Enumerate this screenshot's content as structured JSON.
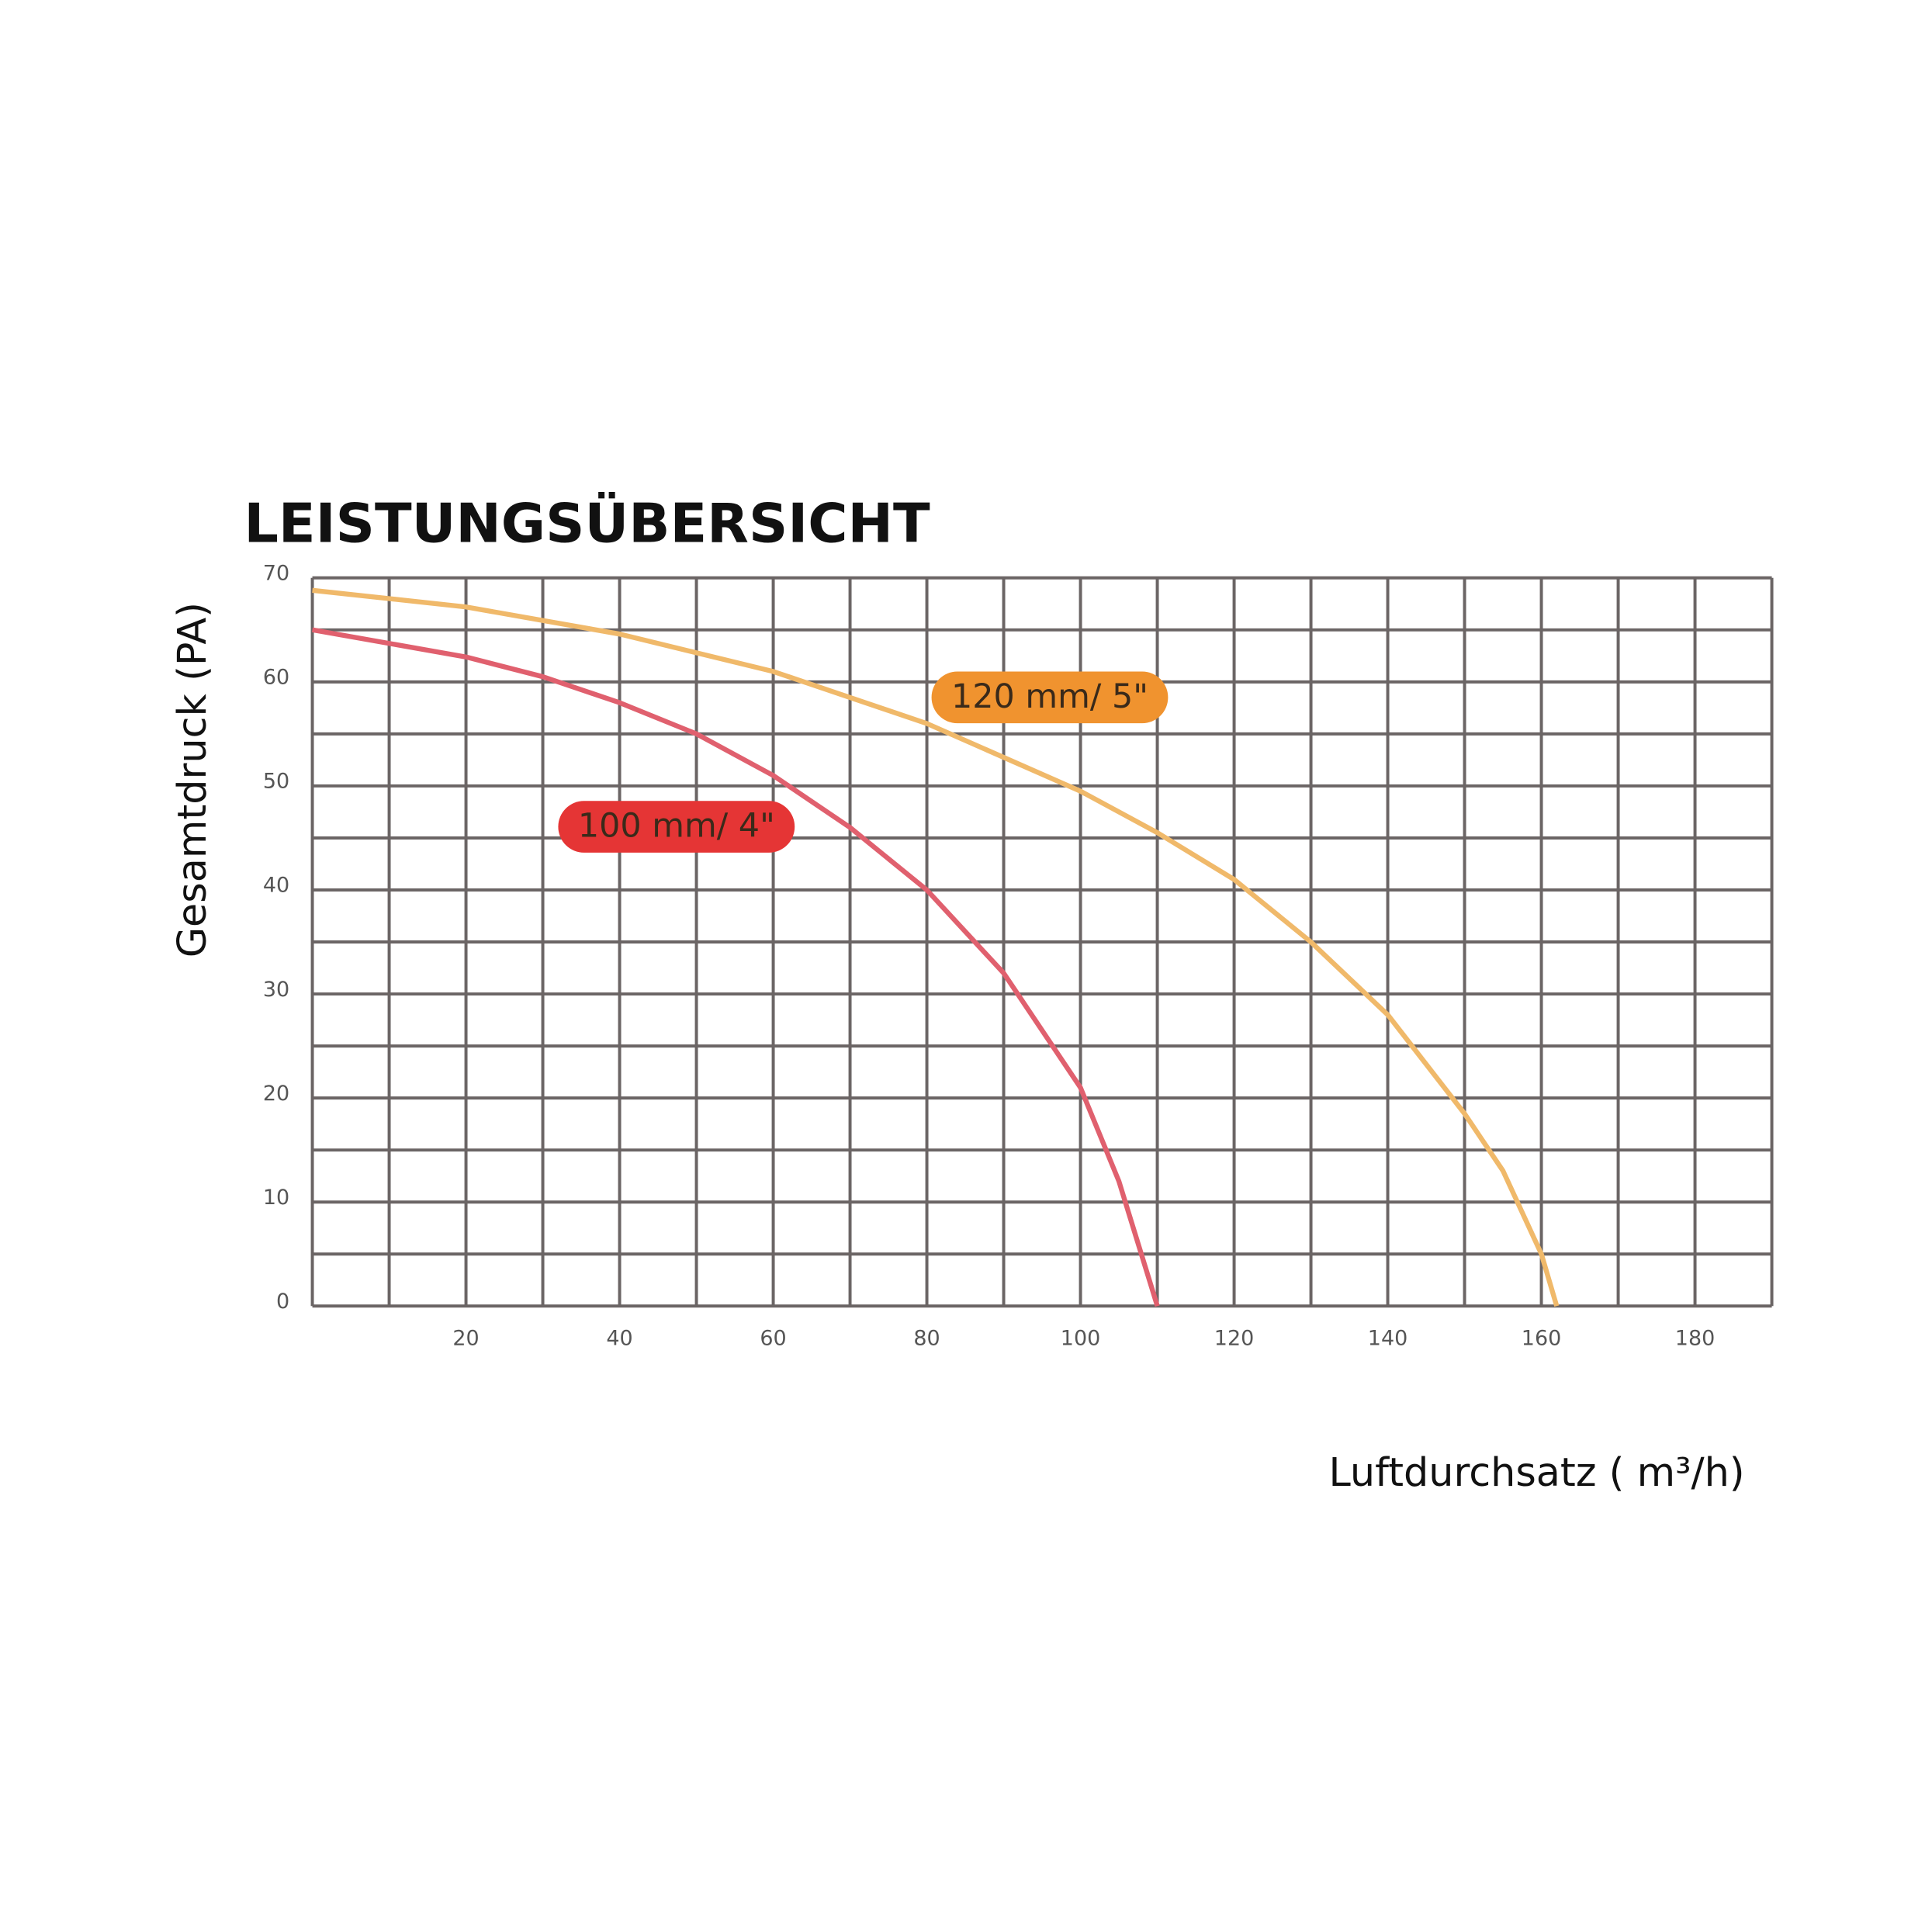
{
  "chart_data": {
    "type": "line",
    "title": "LEISTUNGSÜBERSICHT",
    "x_label": "Luftdurchsatz ( m³/h)",
    "y_label": "Gesamtdruck (PA)",
    "xlim": [
      0,
      190
    ],
    "ylim": [
      0,
      70
    ],
    "xticks": [
      20,
      40,
      60,
      80,
      100,
      120,
      140,
      160,
      180
    ],
    "yticks": [
      0,
      10,
      20,
      30,
      40,
      50,
      60,
      70
    ],
    "xgrid": [
      0,
      10,
      20,
      30,
      40,
      50,
      60,
      70,
      80,
      90,
      100,
      110,
      120,
      130,
      140,
      150,
      160,
      170,
      180,
      190
    ],
    "ygrid": [
      0,
      5,
      10,
      15,
      20,
      25,
      30,
      35,
      40,
      45,
      50,
      55,
      60,
      65,
      70
    ],
    "grid_color": "#6b6565",
    "series": [
      {
        "name": "100 mm/ 4\"",
        "color": "#e0606e",
        "label_color": "#e53535",
        "x": [
          0,
          20,
          30,
          40,
          50,
          60,
          70,
          80,
          90,
          100,
          105,
          110
        ],
        "values": [
          65,
          62.4,
          60.5,
          58,
          55,
          51,
          46,
          40,
          32,
          21,
          12,
          0
        ]
      },
      {
        "name": "120 mm/ 5\"",
        "color": "#f0b96a",
        "label_color": "#f0932f",
        "x": [
          0,
          20,
          40,
          60,
          80,
          100,
          110,
          120,
          130,
          140,
          150,
          155,
          160,
          162
        ],
        "values": [
          68.8,
          67.2,
          64.6,
          61,
          56,
          49.5,
          45.5,
          41,
          35,
          28,
          18.5,
          13,
          5,
          0
        ]
      }
    ]
  }
}
